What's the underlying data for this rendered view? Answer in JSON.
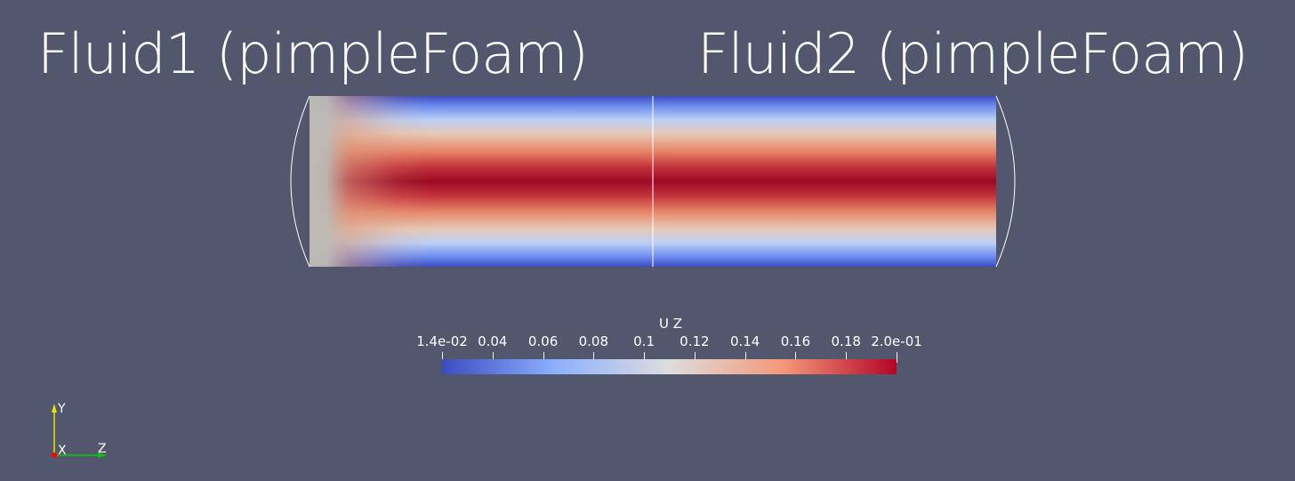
{
  "titles": {
    "left": "Fluid1 (pimpleFoam)",
    "right": "Fluid2 (pimpleFoam)"
  },
  "colorbar": {
    "title": "U Z",
    "tick_labels": [
      "1.4e-02",
      "0.04",
      "0.06",
      "0.08",
      "0.1",
      "0.12",
      "0.14",
      "0.16",
      "0.18",
      "2.0e-01"
    ],
    "colormap": "Cool to Warm",
    "colors": [
      "#3b4cc0",
      "#8db0fe",
      "#dddddd",
      "#f4987a",
      "#b40426"
    ],
    "range": [
      0.014,
      0.2
    ]
  },
  "orientation_axes": {
    "y_label": "Y",
    "x_label": "X",
    "z_label": "Z",
    "colors": {
      "y": "#e6e600",
      "x": "#ff0000",
      "z": "#00d000"
    }
  },
  "scene": {
    "background": "#52576e"
  }
}
